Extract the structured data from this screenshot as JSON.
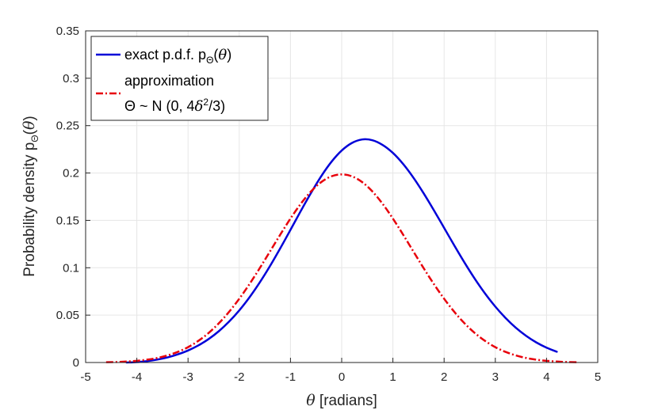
{
  "chart_data": {
    "type": "line",
    "title": "",
    "xlabel": {
      "symbol": "θ",
      "text": " [radians]"
    },
    "ylabel": {
      "main": "Probability density p",
      "sub": "Θ",
      "paren_open": "(",
      "symbol": "θ",
      "paren_close": ")"
    },
    "xlim": [
      -5,
      5
    ],
    "ylim": [
      0,
      0.35
    ],
    "x_ticks": [
      -5,
      -4,
      -3,
      -2,
      -1,
      0,
      1,
      2,
      3,
      4,
      5
    ],
    "y_ticks": [
      0,
      0.05,
      0.1,
      0.15,
      0.2,
      0.25,
      0.3,
      0.35
    ],
    "x_tick_labels": [
      "-5",
      "-4",
      "-3",
      "-2",
      "-1",
      "0",
      "1",
      "2",
      "3",
      "4",
      "5"
    ],
    "y_tick_labels": [
      "0",
      "0.05",
      "0.1",
      "0.15",
      "0.2",
      "0.25",
      "0.3",
      "0.35"
    ],
    "grid": true,
    "legend_position": "top-left",
    "series": [
      {
        "name": "exact p.d.f.",
        "legend": {
          "main": "exact p.d.f. p",
          "sub": "Θ",
          "paren_open": "(",
          "symbol": "θ",
          "paren_close": ")"
        },
        "color": "#0000d8",
        "style": "solid",
        "x": [
          -4.2,
          -4.0,
          -3.8,
          -3.6,
          -3.4,
          -3.2,
          -3.0,
          -2.8,
          -2.6,
          -2.4,
          -2.2,
          -2.0,
          -1.8,
          -1.6,
          -1.4,
          -1.2,
          -1.0,
          -0.8,
          -0.6,
          -0.4,
          -0.2,
          0.0,
          0.2,
          0.4,
          0.6,
          0.8,
          1.0,
          1.2,
          1.4,
          1.6,
          1.8,
          2.0,
          2.2,
          2.4,
          2.6,
          2.8,
          3.0,
          3.2,
          3.4,
          3.6,
          3.8,
          4.0,
          4.2
        ],
        "y": [
          0.0,
          0.0004,
          0.0015,
          0.0031,
          0.0054,
          0.0086,
          0.0127,
          0.018,
          0.0247,
          0.033,
          0.0431,
          0.055,
          0.0688,
          0.0845,
          0.1018,
          0.1205,
          0.14,
          0.1598,
          0.1789,
          0.1966,
          0.2118,
          0.2237,
          0.2317,
          0.2354,
          0.2346,
          0.2296,
          0.2212,
          0.2095,
          0.1951,
          0.1786,
          0.1607,
          0.1421,
          0.1234,
          0.1053,
          0.0883,
          0.0728,
          0.059,
          0.047,
          0.0367,
          0.0282,
          0.0212,
          0.0157,
          0.0114
        ]
      },
      {
        "name": "approximation",
        "legend_lines": [
          "approximation",
          "Θ ~ N (0,  4δ²/3)"
        ],
        "legend": {
          "line1": "approximation",
          "line2_prefix": "Θ ~ N (0,  4",
          "line2_delta": "δ",
          "line2_sup": "2",
          "line2_suffix": "/3)"
        },
        "color": "#e8000b",
        "style": "dash-dot",
        "x": [
          -4.6,
          -4.4,
          -4.2,
          -4.0,
          -3.8,
          -3.6,
          -3.4,
          -3.2,
          -3.0,
          -2.8,
          -2.6,
          -2.4,
          -2.2,
          -2.0,
          -1.8,
          -1.6,
          -1.4,
          -1.2,
          -1.0,
          -0.8,
          -0.6,
          -0.4,
          -0.2,
          0.0,
          0.2,
          0.4,
          0.6,
          0.8,
          1.0,
          1.2,
          1.4,
          1.6,
          1.8,
          2.0,
          2.2,
          2.4,
          2.6,
          2.8,
          3.0,
          3.2,
          3.4,
          3.6,
          3.8,
          4.0,
          4.2,
          4.4,
          4.6
        ],
        "y": [
          0.0003,
          0.0005,
          0.001,
          0.0018,
          0.003,
          0.0048,
          0.0075,
          0.0112,
          0.0162,
          0.0228,
          0.0311,
          0.0413,
          0.0534,
          0.0673,
          0.0828,
          0.0996,
          0.1172,
          0.1349,
          0.1519,
          0.1674,
          0.1805,
          0.1904,
          0.1965,
          0.1985,
          0.1965,
          0.1904,
          0.1805,
          0.1674,
          0.1519,
          0.1349,
          0.1172,
          0.0996,
          0.0828,
          0.0673,
          0.0534,
          0.0413,
          0.0311,
          0.0228,
          0.0162,
          0.0112,
          0.0075,
          0.0048,
          0.003,
          0.0018,
          0.001,
          0.0005,
          0.0003
        ]
      }
    ]
  }
}
